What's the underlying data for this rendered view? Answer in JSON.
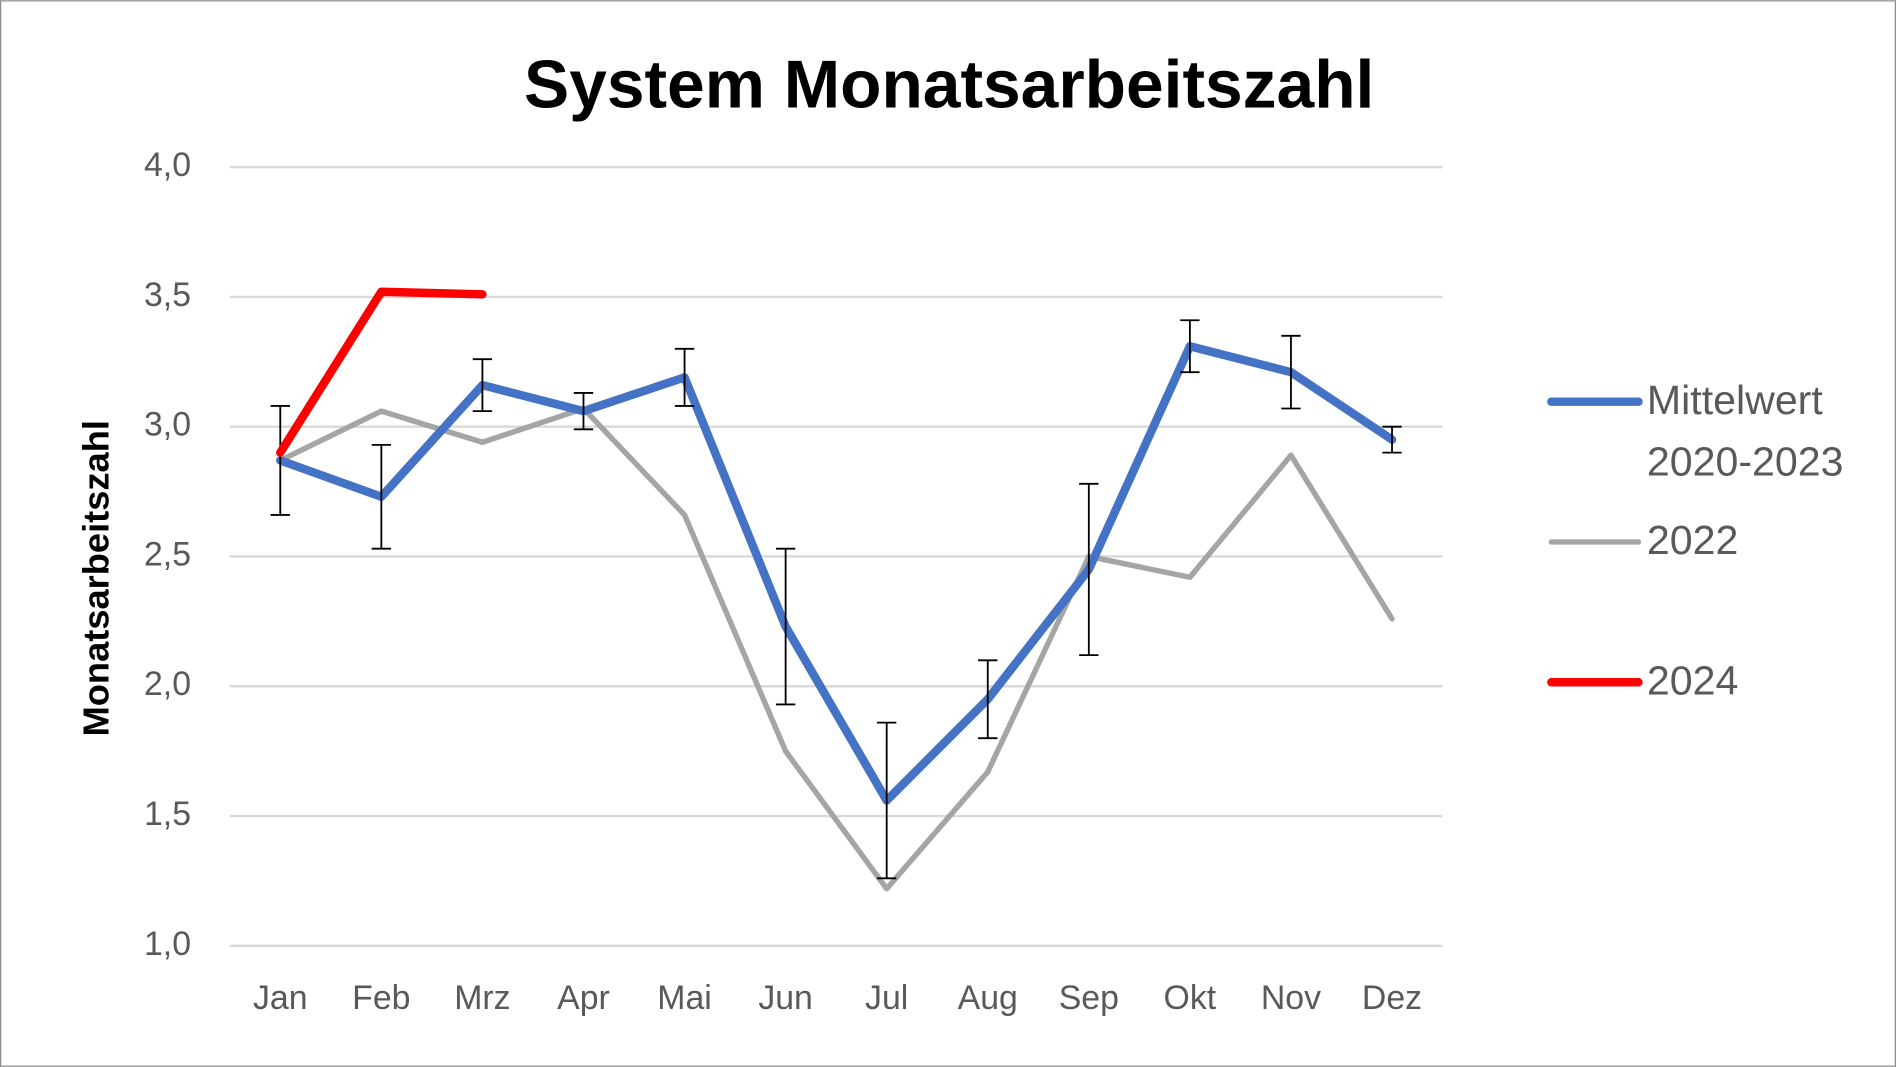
{
  "chart_data": {
    "type": "line",
    "title": "System Monatsarbeitszahl",
    "y_label": "Monatsarbeitszahl",
    "categories": [
      "Jan",
      "Feb",
      "Mrz",
      "Apr",
      "Mai",
      "Jun",
      "Jul",
      "Aug",
      "Sep",
      "Okt",
      "Nov",
      "Dez"
    ],
    "series": [
      {
        "name": "Mittelwert 2020-2023",
        "color": "#4472c4",
        "width": 7,
        "values": [
          2.87,
          2.73,
          3.16,
          3.06,
          3.19,
          2.23,
          1.56,
          1.95,
          2.45,
          3.31,
          3.21,
          2.95
        ],
        "errors": [
          0.21,
          0.2,
          0.1,
          0.07,
          0.11,
          0.3,
          0.3,
          0.15,
          0.33,
          0.1,
          0.14,
          0.05
        ]
      },
      {
        "name": "2022",
        "color": "#a5a5a5",
        "width": 4.5,
        "values": [
          2.87,
          3.06,
          2.94,
          3.07,
          2.66,
          1.75,
          1.22,
          1.67,
          2.5,
          2.42,
          2.89,
          2.26
        ]
      },
      {
        "name": "2024",
        "color": "#ff0000",
        "width": 7,
        "values": [
          2.9,
          3.52,
          3.51,
          null,
          null,
          null,
          null,
          null,
          null,
          null,
          null,
          null
        ]
      }
    ],
    "ylim": [
      1,
      4
    ],
    "yticks": [
      {
        "value": 1,
        "label": "1,0"
      },
      {
        "value": 1.5,
        "label": "1,5"
      },
      {
        "value": 2,
        "label": "2,0"
      },
      {
        "value": 2.5,
        "label": "2,5"
      },
      {
        "value": 3,
        "label": "3,0"
      },
      {
        "value": 3.5,
        "label": "3,5"
      },
      {
        "value": 4,
        "label": "4,0"
      }
    ],
    "grid": true,
    "legend": "right"
  }
}
